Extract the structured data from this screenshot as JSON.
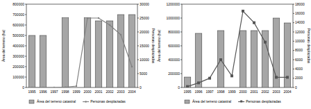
{
  "chart_data": [
    {
      "type": "bar",
      "categories": [
        "1995",
        "1996",
        "1997",
        "1998",
        "1999",
        "2000",
        "2001",
        "2002",
        "2003",
        "2004"
      ],
      "ylabel": "Área del terreno (ha)",
      "y2label": "Personas desplazadas",
      "ylim": [
        0,
        800000
      ],
      "yticks": [
        0,
        100000,
        200000,
        300000,
        400000,
        500000,
        600000,
        700000,
        800000
      ],
      "y2lim": [
        0,
        30000
      ],
      "y2ticks": [
        0,
        5000,
        10000,
        15000,
        20000,
        25000,
        30000
      ],
      "legend": "bottom",
      "series": [
        {
          "name": "Área del terreno catastral",
          "type": "bar",
          "color": "#a6a6a6",
          "values": [
            500000,
            500000,
            null,
            670000,
            null,
            670000,
            640000,
            640000,
            700000,
            700000
          ]
        },
        {
          "name": "Personas desplazadas",
          "type": "line",
          "axis": "y2",
          "color": "#808080",
          "marker": "circle",
          "values": [
            0,
            0,
            0,
            100,
            500,
            25000,
            25000,
            22500,
            19000,
            7500
          ]
        }
      ]
    },
    {
      "type": "bar",
      "categories": [
        "1995",
        "1996",
        "1997",
        "1998",
        "1999",
        "2000",
        "2001",
        "2002",
        "2003",
        "2004"
      ],
      "ylabel": "Área del terreno (ha)",
      "y2label": "Personas desplazadas",
      "ylim": [
        0,
        1200000
      ],
      "yticks": [
        0,
        200000,
        400000,
        600000,
        800000,
        1000000,
        1200000
      ],
      "y2lim": [
        0,
        18000
      ],
      "y2ticks": [
        0,
        2000,
        4000,
        6000,
        8000,
        10000,
        12000,
        14000,
        16000,
        18000
      ],
      "legend": "bottom",
      "series": [
        {
          "name": "Área del terreno catastral",
          "type": "bar",
          "color": "#a6a6a6",
          "values": [
            150000,
            780000,
            null,
            820000,
            null,
            820000,
            820000,
            820000,
            1000000,
            930000
          ]
        },
        {
          "name": "Personas desplazadas",
          "type": "line",
          "axis": "y2",
          "color": "#555555",
          "marker": "square",
          "values": [
            200,
            1000,
            2000,
            6000,
            2500,
            16500,
            14000,
            9800,
            2200,
            2200
          ]
        }
      ]
    }
  ]
}
